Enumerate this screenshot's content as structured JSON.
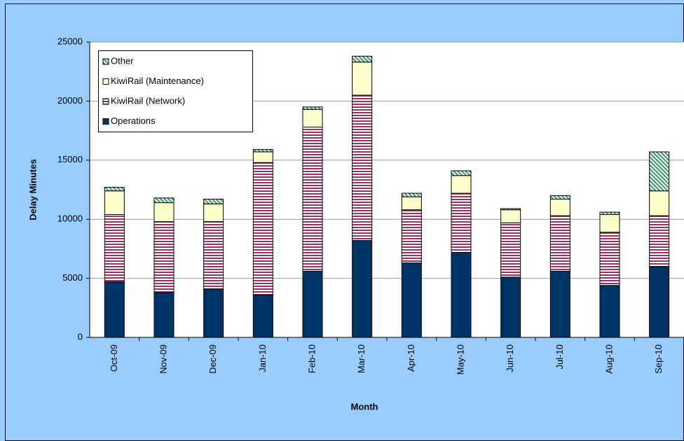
{
  "chart_data": {
    "type": "stacked_bar",
    "x_label": "Month",
    "y_label": "Delay Minutes",
    "categories": [
      "Oct-09",
      "Nov-09",
      "Dec-09",
      "Jan-10",
      "Feb-10",
      "Mar-10",
      "Apr-10",
      "May-10",
      "Jun-10",
      "Jul-10",
      "Aug-10",
      "Sep-10"
    ],
    "series": [
      {
        "name": "Operations",
        "color": "#003366",
        "pattern": "solid",
        "values": [
          4700,
          3800,
          4100,
          3600,
          5600,
          8200,
          6300,
          7200,
          5100,
          5600,
          4400,
          6000
        ]
      },
      {
        "name": "KiwiRail (Network)",
        "color": "#993366",
        "pattern": "horizontal",
        "values": [
          5700,
          6000,
          5700,
          11200,
          12200,
          12300,
          4500,
          5000,
          4600,
          4700,
          4500,
          4300
        ]
      },
      {
        "name": "KiwiRail (Maintenance)",
        "color": "#ffffcc",
        "pattern": "solid",
        "values": [
          2000,
          1600,
          1500,
          900,
          1500,
          2800,
          1100,
          1500,
          1100,
          1400,
          1500,
          2100
        ]
      },
      {
        "name": "Other",
        "color": "#339966",
        "pattern": "diagonal",
        "values": [
          300,
          400,
          400,
          200,
          200,
          500,
          300,
          400,
          100,
          300,
          200,
          3300
        ]
      }
    ],
    "ylim": [
      0,
      25000
    ],
    "yticks": [
      0,
      5000,
      10000,
      15000,
      20000,
      25000
    ],
    "grid": true,
    "legend": "upper left"
  }
}
